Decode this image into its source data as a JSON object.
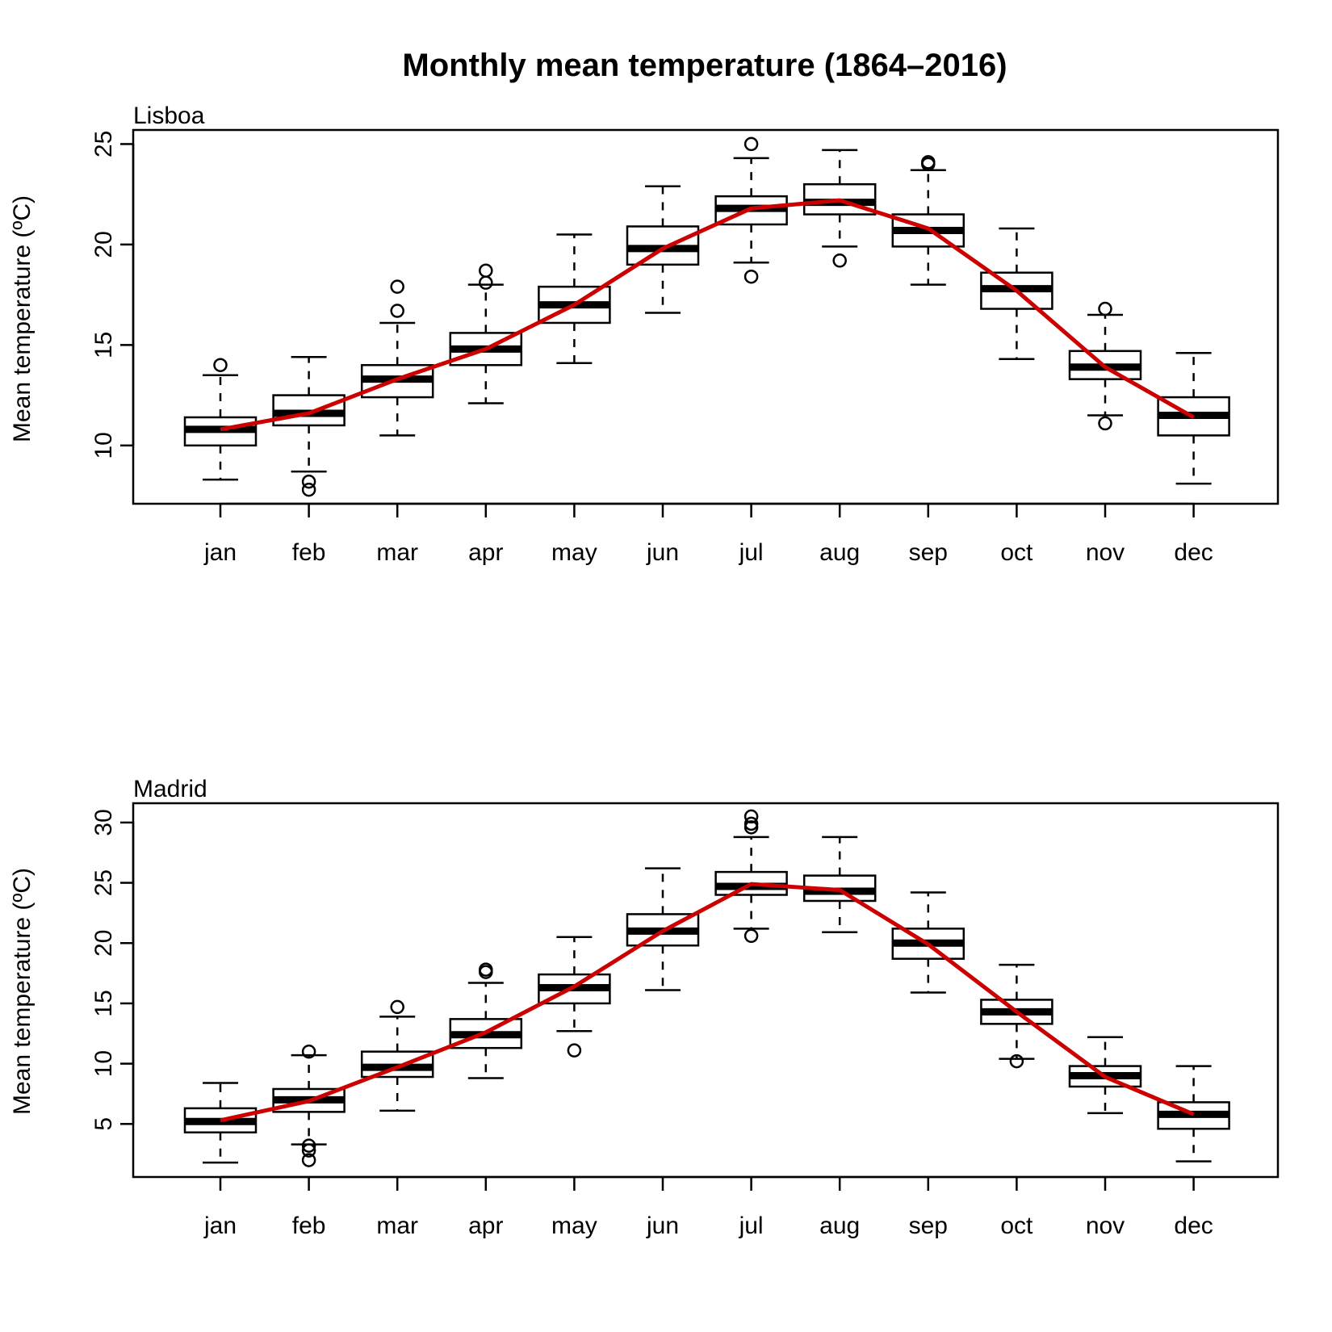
{
  "title": "Monthly mean temperature (1864–2016)",
  "colors": {
    "mean_line": "#cc0000",
    "box_fill": "#ffffff",
    "ink": "#000000"
  },
  "chart_data": [
    {
      "type": "boxplot",
      "panel_label": "Lisboa",
      "ylabel": "Mean temperature (ºC)",
      "xlabel": "",
      "categories": [
        "jan",
        "feb",
        "mar",
        "apr",
        "may",
        "jun",
        "jul",
        "aug",
        "sep",
        "oct",
        "nov",
        "dec"
      ],
      "ylim": [
        7.1,
        25.7
      ],
      "yticks": [
        10,
        15,
        20,
        25
      ],
      "boxes": [
        {
          "whisker_low": 8.3,
          "q1": 10.0,
          "median": 10.8,
          "q3": 11.4,
          "whisker_high": 13.5,
          "outliers": [
            14.0
          ]
        },
        {
          "whisker_low": 8.7,
          "q1": 11.0,
          "median": 11.6,
          "q3": 12.5,
          "whisker_high": 14.4,
          "outliers": [
            8.2,
            7.8
          ]
        },
        {
          "whisker_low": 10.5,
          "q1": 12.4,
          "median": 13.3,
          "q3": 14.0,
          "whisker_high": 16.1,
          "outliers": [
            16.7,
            17.9
          ]
        },
        {
          "whisker_low": 12.1,
          "q1": 14.0,
          "median": 14.8,
          "q3": 15.6,
          "whisker_high": 18.0,
          "outliers": [
            18.1,
            18.7
          ]
        },
        {
          "whisker_low": 14.1,
          "q1": 16.1,
          "median": 17.0,
          "q3": 17.9,
          "whisker_high": 20.5,
          "outliers": []
        },
        {
          "whisker_low": 16.6,
          "q1": 19.0,
          "median": 19.8,
          "q3": 20.9,
          "whisker_high": 22.9,
          "outliers": []
        },
        {
          "whisker_low": 19.1,
          "q1": 21.0,
          "median": 21.8,
          "q3": 22.4,
          "whisker_high": 24.3,
          "outliers": [
            18.4,
            25.0
          ]
        },
        {
          "whisker_low": 19.9,
          "q1": 21.5,
          "median": 22.1,
          "q3": 23.0,
          "whisker_high": 24.7,
          "outliers": [
            19.2
          ]
        },
        {
          "whisker_low": 18.0,
          "q1": 19.9,
          "median": 20.7,
          "q3": 21.5,
          "whisker_high": 23.7,
          "outliers": [
            24.0,
            24.1
          ]
        },
        {
          "whisker_low": 14.3,
          "q1": 16.8,
          "median": 17.8,
          "q3": 18.6,
          "whisker_high": 20.8,
          "outliers": []
        },
        {
          "whisker_low": 11.5,
          "q1": 13.3,
          "median": 13.9,
          "q3": 14.7,
          "whisker_high": 16.5,
          "outliers": [
            11.1,
            16.8
          ]
        },
        {
          "whisker_low": 8.1,
          "q1": 10.5,
          "median": 11.5,
          "q3": 12.4,
          "whisker_high": 14.6,
          "outliers": []
        }
      ],
      "mean_series": [
        10.8,
        11.6,
        13.3,
        14.8,
        17.0,
        19.8,
        21.8,
        22.2,
        20.8,
        17.7,
        13.9,
        11.4
      ]
    },
    {
      "type": "boxplot",
      "panel_label": "Madrid",
      "ylabel": "Mean temperature (ºC)",
      "xlabel": "",
      "categories": [
        "jan",
        "feb",
        "mar",
        "apr",
        "may",
        "jun",
        "jul",
        "aug",
        "sep",
        "oct",
        "nov",
        "dec"
      ],
      "ylim": [
        0.6,
        31.6
      ],
      "yticks": [
        5,
        10,
        15,
        20,
        25,
        30
      ],
      "boxes": [
        {
          "whisker_low": 1.8,
          "q1": 4.3,
          "median": 5.2,
          "q3": 6.3,
          "whisker_high": 8.4,
          "outliers": []
        },
        {
          "whisker_low": 3.3,
          "q1": 6.0,
          "median": 7.0,
          "q3": 7.9,
          "whisker_high": 10.7,
          "outliers": [
            11.0,
            3.2,
            2.8,
            2.0
          ]
        },
        {
          "whisker_low": 6.1,
          "q1": 8.9,
          "median": 9.7,
          "q3": 11.0,
          "whisker_high": 13.9,
          "outliers": [
            14.7
          ]
        },
        {
          "whisker_low": 8.8,
          "q1": 11.3,
          "median": 12.4,
          "q3": 13.7,
          "whisker_high": 16.7,
          "outliers": [
            17.6,
            17.8
          ]
        },
        {
          "whisker_low": 12.7,
          "q1": 15.0,
          "median": 16.3,
          "q3": 17.4,
          "whisker_high": 20.5,
          "outliers": [
            11.1
          ]
        },
        {
          "whisker_low": 16.1,
          "q1": 19.8,
          "median": 21.0,
          "q3": 22.4,
          "whisker_high": 26.2,
          "outliers": []
        },
        {
          "whisker_low": 21.2,
          "q1": 24.0,
          "median": 24.7,
          "q3": 25.9,
          "whisker_high": 28.8,
          "outliers": [
            20.6,
            29.6,
            29.9,
            30.5
          ]
        },
        {
          "whisker_low": 20.9,
          "q1": 23.5,
          "median": 24.3,
          "q3": 25.6,
          "whisker_high": 28.8,
          "outliers": []
        },
        {
          "whisker_low": 15.9,
          "q1": 18.7,
          "median": 20.0,
          "q3": 21.2,
          "whisker_high": 24.2,
          "outliers": []
        },
        {
          "whisker_low": 10.4,
          "q1": 13.3,
          "median": 14.3,
          "q3": 15.3,
          "whisker_high": 18.2,
          "outliers": [
            10.2
          ]
        },
        {
          "whisker_low": 5.9,
          "q1": 8.1,
          "median": 9.0,
          "q3": 9.8,
          "whisker_high": 12.2,
          "outliers": []
        },
        {
          "whisker_low": 1.9,
          "q1": 4.6,
          "median": 5.8,
          "q3": 6.8,
          "whisker_high": 9.8,
          "outliers": []
        }
      ],
      "mean_series": [
        5.3,
        6.9,
        9.7,
        12.6,
        16.4,
        21.0,
        24.9,
        24.4,
        19.9,
        14.3,
        8.9,
        5.8
      ]
    }
  ]
}
